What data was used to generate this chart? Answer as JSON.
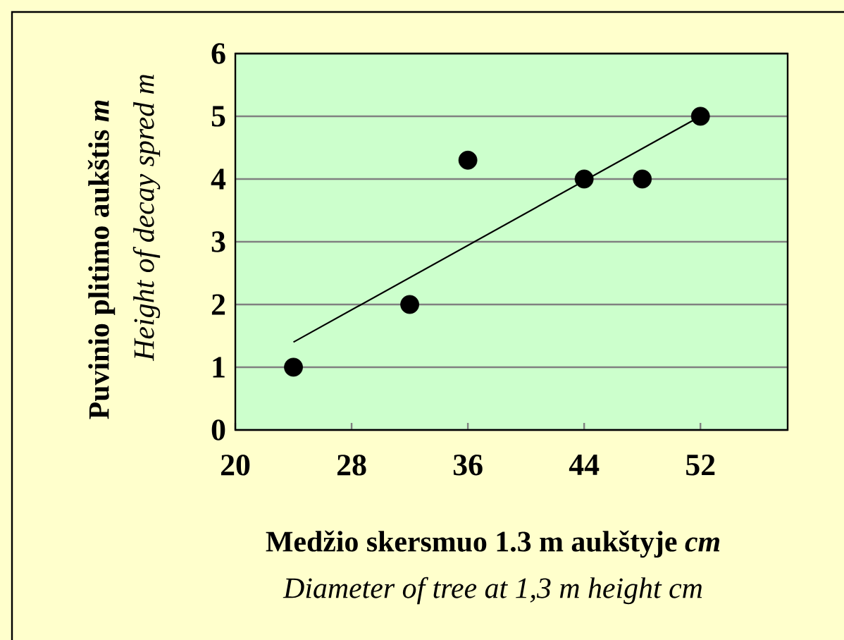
{
  "chart_data": {
    "type": "scatter",
    "xlabel": "Medžio skersmuo 1.3 m aukštyje *cm*",
    "ylabel": "Puvinio plitimo aukštis *m*",
    "annotations": [
      "Diameter of tree at 1,3 m height cm",
      "Height of decay spred m"
    ],
    "xlim": [
      20,
      58
    ],
    "ylim": [
      0,
      6
    ],
    "xticks": [
      20,
      28,
      36,
      44,
      52
    ],
    "yticks": [
      0,
      1,
      2,
      3,
      4,
      5,
      6
    ],
    "grid": "y",
    "series": [
      {
        "color": "#000000",
        "marker": "circle",
        "x": [
          24,
          32,
          36,
          44,
          48,
          52
        ],
        "values": [
          1,
          2,
          4.3,
          4,
          4,
          5
        ]
      },
      {
        "type": "line",
        "color": "#000000",
        "marker": "none",
        "x": [
          24,
          52
        ],
        "values": [
          1.4,
          5.0
        ]
      }
    ]
  }
}
